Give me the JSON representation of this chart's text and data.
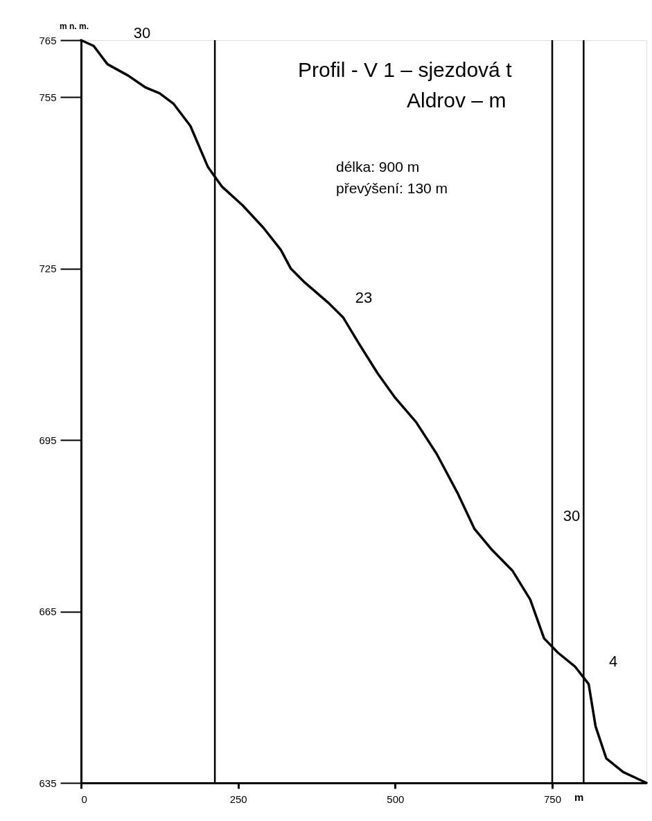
{
  "chart_data": {
    "type": "line",
    "title": "Profil - V 1 – sjezdová t",
    "subtitle": "Aldrov – m",
    "xlabel": "m",
    "ylabel": "m n. m.",
    "x": [
      0,
      20,
      42,
      75,
      103,
      125,
      147,
      174,
      202,
      224,
      257,
      290,
      318,
      334,
      356,
      395,
      417,
      444,
      472,
      500,
      533,
      566,
      599,
      626,
      654,
      687,
      715,
      737,
      759,
      786,
      808,
      819,
      836,
      863,
      900
    ],
    "series": [
      {
        "color": "#000000",
        "values": [
          765,
          764,
          760.8,
          758.8,
          756.7,
          755.7,
          753.9,
          750,
          742.8,
          739.4,
          736.1,
          732.2,
          728.3,
          725,
          722.6,
          718.9,
          716.5,
          711.6,
          706.7,
          702.4,
          698.2,
          692.6,
          685.8,
          679.5,
          675.8,
          672.1,
          667.1,
          660.3,
          657.8,
          655.4,
          652.3,
          644.9,
          639.3,
          636.9,
          635
        ]
      }
    ],
    "xlim": [
      0,
      900
    ],
    "xticks": [
      0,
      250,
      500,
      750
    ],
    "ylim": [
      635,
      765
    ],
    "yticks": [
      635,
      665,
      695,
      725,
      755,
      765
    ],
    "grid": false,
    "legend": false,
    "marker": "none",
    "line_style": "solid",
    "ref_lines": [
      {
        "axis": "x",
        "value": 213,
        "color": "#000000"
      },
      {
        "axis": "x",
        "value": 750,
        "color": "#000000"
      },
      {
        "axis": "x",
        "value": 800,
        "color": "#000000"
      }
    ],
    "annotations": [
      "délka: 900 m",
      "převýšení: 130 m",
      "30",
      "23",
      "30",
      "4"
    ]
  }
}
